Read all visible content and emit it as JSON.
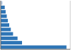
{
  "chart_data": {
    "type": "bar",
    "orientation": "horizontal",
    "categories": [
      null,
      null,
      null,
      null,
      null,
      null,
      null,
      null,
      null,
      null,
      null
    ],
    "values": [
      293,
      95,
      75,
      55,
      45,
      38,
      32,
      27,
      22,
      18,
      8
    ],
    "colors": [
      "#2e75b6",
      "#2e75b6",
      "#2e75b6",
      "#2e75b6",
      "#2e75b6",
      "#2e75b6",
      "#2e75b6",
      "#2e75b6",
      "#2e75b6",
      "#2e75b6",
      "#b8cce4"
    ],
    "xlim": [
      0,
      310
    ],
    "xticks": [
      77.5,
      155,
      232.5,
      310
    ],
    "grid": true,
    "tick_labels": false
  }
}
